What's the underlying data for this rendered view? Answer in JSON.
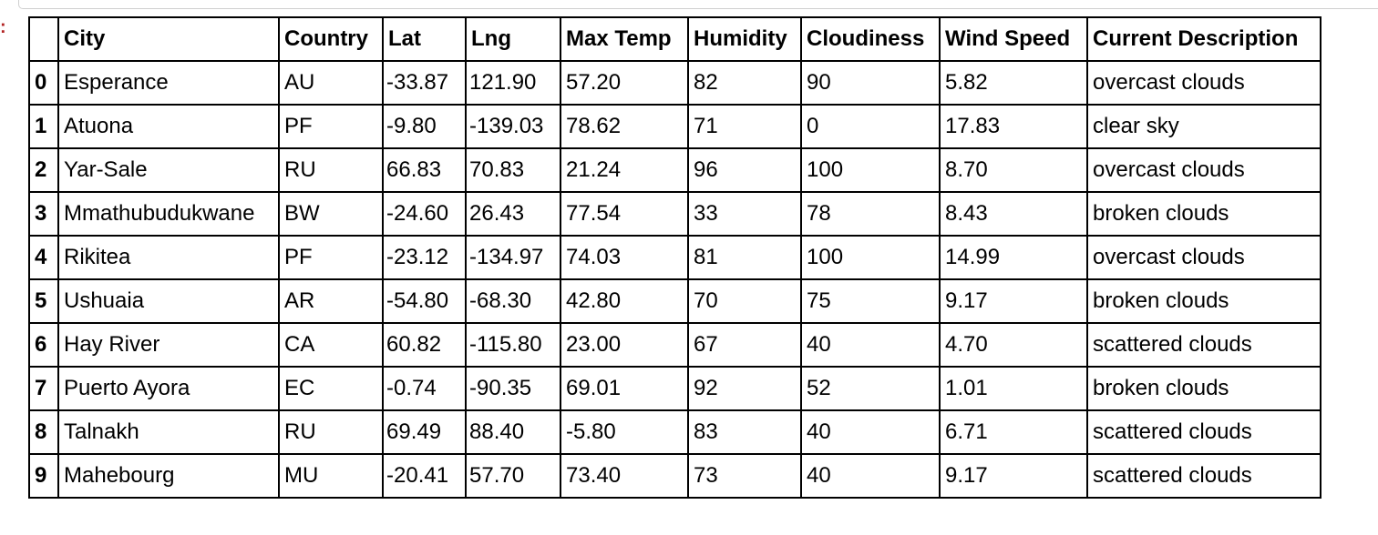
{
  "prompt_mark": ":",
  "columns": {
    "index": "",
    "city": "City",
    "country": "Country",
    "lat": "Lat",
    "lng": "Lng",
    "max_temp": "Max Temp",
    "humidity": "Humidity",
    "cloudiness": "Cloudiness",
    "wind_speed": "Wind Speed",
    "description": "Current Description"
  },
  "rows": [
    {
      "index": "0",
      "city": "Esperance",
      "country": "AU",
      "lat": "-33.87",
      "lng": "121.90",
      "max_temp": "57.20",
      "humidity": "82",
      "cloudiness": "90",
      "wind_speed": "5.82",
      "description": "overcast clouds"
    },
    {
      "index": "1",
      "city": "Atuona",
      "country": "PF",
      "lat": "-9.80",
      "lng": "-139.03",
      "max_temp": "78.62",
      "humidity": "71",
      "cloudiness": "0",
      "wind_speed": "17.83",
      "description": "clear sky"
    },
    {
      "index": "2",
      "city": "Yar-Sale",
      "country": "RU",
      "lat": "66.83",
      "lng": "70.83",
      "max_temp": "21.24",
      "humidity": "96",
      "cloudiness": "100",
      "wind_speed": "8.70",
      "description": "overcast clouds"
    },
    {
      "index": "3",
      "city": "Mmathubudukwane",
      "country": "BW",
      "lat": "-24.60",
      "lng": "26.43",
      "max_temp": "77.54",
      "humidity": "33",
      "cloudiness": "78",
      "wind_speed": "8.43",
      "description": "broken clouds"
    },
    {
      "index": "4",
      "city": "Rikitea",
      "country": "PF",
      "lat": "-23.12",
      "lng": "-134.97",
      "max_temp": "74.03",
      "humidity": "81",
      "cloudiness": "100",
      "wind_speed": "14.99",
      "description": "overcast clouds"
    },
    {
      "index": "5",
      "city": "Ushuaia",
      "country": "AR",
      "lat": "-54.80",
      "lng": "-68.30",
      "max_temp": "42.80",
      "humidity": "70",
      "cloudiness": "75",
      "wind_speed": "9.17",
      "description": "broken clouds"
    },
    {
      "index": "6",
      "city": "Hay River",
      "country": "CA",
      "lat": "60.82",
      "lng": "-115.80",
      "max_temp": "23.00",
      "humidity": "67",
      "cloudiness": "40",
      "wind_speed": "4.70",
      "description": "scattered clouds"
    },
    {
      "index": "7",
      "city": "Puerto Ayora",
      "country": "EC",
      "lat": "-0.74",
      "lng": "-90.35",
      "max_temp": "69.01",
      "humidity": "92",
      "cloudiness": "52",
      "wind_speed": "1.01",
      "description": "broken clouds"
    },
    {
      "index": "8",
      "city": "Talnakh",
      "country": "RU",
      "lat": "69.49",
      "lng": "88.40",
      "max_temp": "-5.80",
      "humidity": "83",
      "cloudiness": "40",
      "wind_speed": "6.71",
      "description": "scattered clouds"
    },
    {
      "index": "9",
      "city": "Mahebourg",
      "country": "MU",
      "lat": "-20.41",
      "lng": "57.70",
      "max_temp": "73.40",
      "humidity": "73",
      "cloudiness": "40",
      "wind_speed": "9.17",
      "description": "scattered clouds"
    }
  ],
  "colors": {
    "prompt_mark": "#b22222",
    "border": "#000000",
    "cell_frame": "#d0d0d0"
  }
}
